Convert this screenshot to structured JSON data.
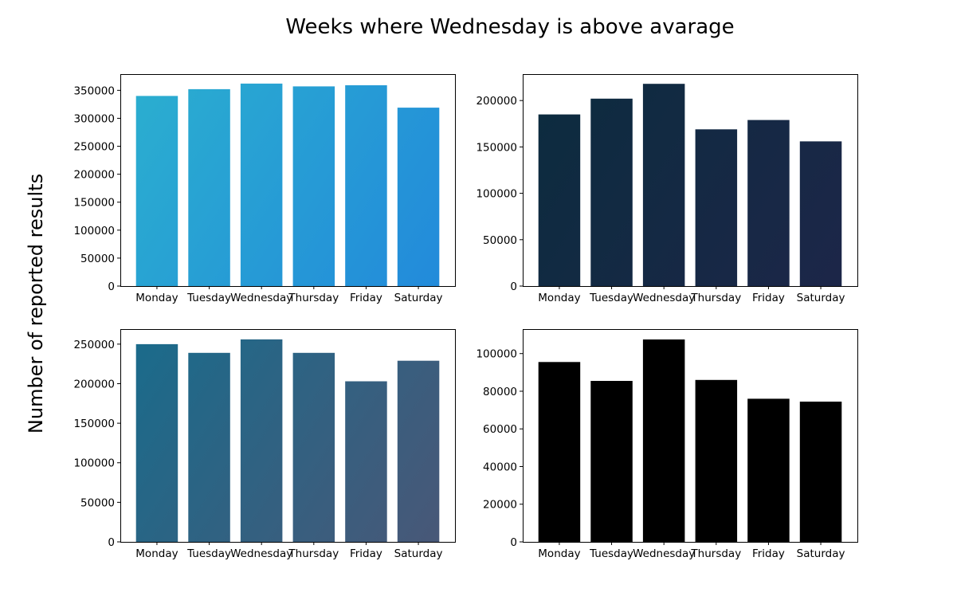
{
  "figure": {
    "suptitle": "Weeks where Wednesday is above avarage",
    "ylabel": "Number of reported results"
  },
  "chart_data": [
    {
      "type": "bar",
      "categories": [
        "Monday",
        "Tuesday",
        "Wednesday",
        "Thursday",
        "Friday",
        "Saturday"
      ],
      "values": [
        340000,
        352000,
        362000,
        357000,
        359000,
        319000
      ],
      "ylim": [
        0,
        379000
      ],
      "yticks": [
        0,
        50000,
        100000,
        150000,
        200000,
        250000,
        300000,
        350000
      ],
      "gradient": [
        "#2bb0cf",
        "#2289db"
      ],
      "title": "",
      "xlabel": "",
      "ylabel": ""
    },
    {
      "type": "bar",
      "categories": [
        "Monday",
        "Tuesday",
        "Wednesday",
        "Thursday",
        "Friday",
        "Saturday"
      ],
      "values": [
        185000,
        202000,
        218000,
        169000,
        179000,
        156000
      ],
      "ylim": [
        0,
        228500
      ],
      "yticks": [
        0,
        50000,
        100000,
        150000,
        200000
      ],
      "gradient": [
        "#0b2c3e",
        "#1d2649"
      ],
      "title": "",
      "xlabel": "",
      "ylabel": ""
    },
    {
      "type": "bar",
      "categories": [
        "Monday",
        "Tuesday",
        "Wednesday",
        "Thursday",
        "Friday",
        "Saturday"
      ],
      "values": [
        250000,
        239000,
        256000,
        239000,
        203000,
        229000
      ],
      "ylim": [
        0,
        269000
      ],
      "yticks": [
        0,
        50000,
        100000,
        150000,
        200000,
        250000
      ],
      "gradient": [
        "#186c8c",
        "#4a5777"
      ],
      "title": "",
      "xlabel": "",
      "ylabel": ""
    },
    {
      "type": "bar",
      "categories": [
        "Monday",
        "Tuesday",
        "Wednesday",
        "Thursday",
        "Friday",
        "Saturday"
      ],
      "values": [
        95500,
        85500,
        107500,
        86000,
        76000,
        74500
      ],
      "ylim": [
        0,
        113000
      ],
      "yticks": [
        0,
        20000,
        40000,
        60000,
        80000,
        100000
      ],
      "gradient": [
        "#000000",
        "#000000"
      ],
      "title": "",
      "xlabel": "",
      "ylabel": ""
    }
  ]
}
